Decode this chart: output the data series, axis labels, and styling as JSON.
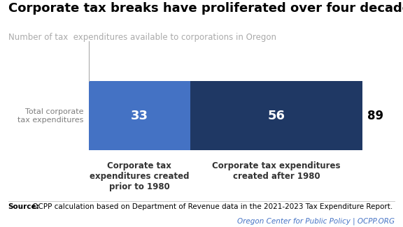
{
  "title": "Corporate tax breaks have proliferated over four decades",
  "subtitle": "Number of tax  expenditures available to corporations in Oregon",
  "bar_label": "Total corporate\ntax expenditures",
  "segment1_value": 33,
  "segment2_value": 56,
  "total_value": 89,
  "segment1_color": "#4472C4",
  "segment2_color": "#1F3864",
  "segment1_label": "Corporate tax\nexpenditures created\nprior to 1980",
  "segment2_label": "Corporate tax expenditures\ncreated after 1980",
  "source_bold": "Source:",
  "source_rest": " OCPP calculation based on Department of Revenue data in the 2021-2023 Tax Expenditure Report.",
  "footer_text": "Oregon Center for Public Policy | OCPP.ORG",
  "background_color": "#ffffff",
  "title_fontsize": 13,
  "subtitle_fontsize": 8.5,
  "bar_value_fontsize": 13,
  "total_fontsize": 12,
  "label_fontsize": 8.5,
  "source_fontsize": 7.5,
  "footer_color": "#4472C4",
  "label_color": "#333333",
  "y_label_color": "#7f7f7f"
}
